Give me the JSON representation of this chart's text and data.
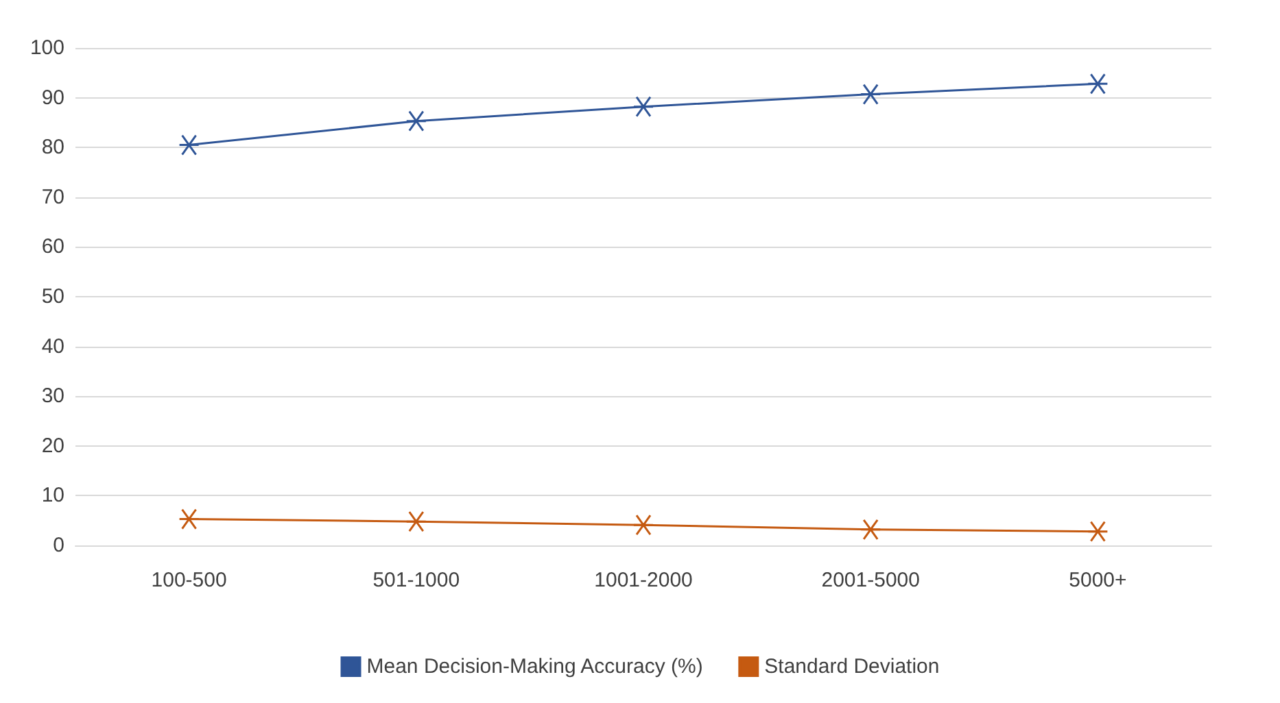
{
  "chart_data": {
    "type": "line",
    "categories": [
      "100-500",
      "501-1000",
      "1001-2000",
      "2001-5000",
      "5000+"
    ],
    "series": [
      {
        "name": "Mean Decision-Making Accuracy (%)",
        "color": "#2f5597",
        "values": [
          80.5,
          85.3,
          88.2,
          90.7,
          92.8
        ]
      },
      {
        "name": "Standard Deviation",
        "color": "#c55a11",
        "values": [
          5.3,
          4.8,
          4.1,
          3.2,
          2.8
        ]
      }
    ],
    "ylim": [
      0,
      100
    ],
    "yticks": [
      0,
      10,
      20,
      30,
      40,
      50,
      60,
      70,
      80,
      90,
      100
    ],
    "grid": "y",
    "legend": "bottom",
    "marker": "cross",
    "line_style": "solid"
  }
}
